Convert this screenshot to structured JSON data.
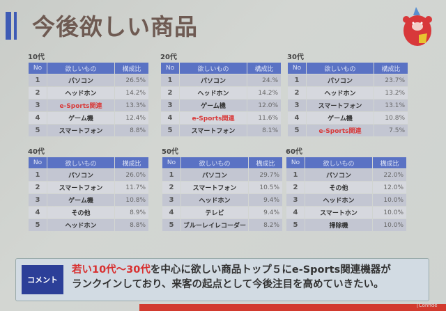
{
  "title": "今後欲しい商品",
  "headers": {
    "no": "No",
    "item": "欲しいもの",
    "ratio": "構成比"
  },
  "groups": [
    {
      "label": "10代",
      "rows": [
        {
          "no": "1",
          "item": "パソコン",
          "ratio": "26.5%"
        },
        {
          "no": "2",
          "item": "ヘッドホン",
          "ratio": "14.2%"
        },
        {
          "no": "3",
          "item": "e-Sports関連",
          "ratio": "13.3%",
          "highlight": true
        },
        {
          "no": "4",
          "item": "ゲーム機",
          "ratio": "12.4%"
        },
        {
          "no": "5",
          "item": "スマートフォン",
          "ratio": "8.8%"
        }
      ]
    },
    {
      "label": "20代",
      "rows": [
        {
          "no": "1",
          "item": "パソコン",
          "ratio": "24.%"
        },
        {
          "no": "2",
          "item": "ヘッドホン",
          "ratio": "14.2%"
        },
        {
          "no": "3",
          "item": "ゲーム機",
          "ratio": "12.0%"
        },
        {
          "no": "4",
          "item": "e-Sports関連",
          "ratio": "11.6%",
          "highlight": true
        },
        {
          "no": "5",
          "item": "スマートフォン",
          "ratio": "8.1%"
        }
      ]
    },
    {
      "label": "30代",
      "rows": [
        {
          "no": "1",
          "item": "パソコン",
          "ratio": "23.7%"
        },
        {
          "no": "2",
          "item": "ヘッドホン",
          "ratio": "13.2%"
        },
        {
          "no": "3",
          "item": "スマートフォン",
          "ratio": "13.1%"
        },
        {
          "no": "4",
          "item": "ゲーム機",
          "ratio": "10.8%"
        },
        {
          "no": "5",
          "item": "e-Sports関連",
          "ratio": "7.5%",
          "highlight": true
        }
      ]
    },
    {
      "label": "40代",
      "rows": [
        {
          "no": "1",
          "item": "パソコン",
          "ratio": "26.0%"
        },
        {
          "no": "2",
          "item": "スマートフォン",
          "ratio": "11.7%"
        },
        {
          "no": "3",
          "item": "ゲーム機",
          "ratio": "10.8%"
        },
        {
          "no": "4",
          "item": "その他",
          "ratio": "8.9%"
        },
        {
          "no": "5",
          "item": "ヘッドホン",
          "ratio": "8.8%"
        }
      ]
    },
    {
      "label": "50代",
      "rows": [
        {
          "no": "1",
          "item": "パソコン",
          "ratio": "29.7%"
        },
        {
          "no": "2",
          "item": "スマートフォン",
          "ratio": "10.5%"
        },
        {
          "no": "3",
          "item": "ヘッドホン",
          "ratio": "9.4%"
        },
        {
          "no": "4",
          "item": "テレビ",
          "ratio": "9.4%"
        },
        {
          "no": "5",
          "item": "ブルーレイレコーダー",
          "ratio": "8.2%"
        }
      ]
    },
    {
      "label": "60代",
      "rows": [
        {
          "no": "1",
          "item": "パソコン",
          "ratio": "22.0%"
        },
        {
          "no": "2",
          "item": "その他",
          "ratio": "12.0%"
        },
        {
          "no": "3",
          "item": "ヘッドホン",
          "ratio": "10.0%"
        },
        {
          "no": "4",
          "item": "スマートホン",
          "ratio": "10.0%"
        },
        {
          "no": "5",
          "item": "掃除機",
          "ratio": "10.0%"
        }
      ]
    }
  ],
  "comment": {
    "label": "コメント",
    "line1_highlight": "若い10代～30代",
    "line1_rest": "を中心に欲しい商品トップ５にe-Sports関連機器が",
    "line2": "ランクインしており、来客の起点として今後注目を高めていきたい。"
  },
  "footer": "[Confide",
  "colors": {
    "header": "#5a72c4",
    "highlight": "#d83a3a",
    "accent": "#3e5bb5"
  }
}
